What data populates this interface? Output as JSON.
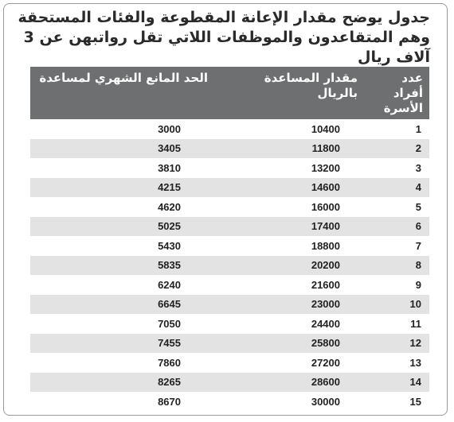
{
  "title": "جدول يوضح مقدار الإعانة المقطوعة والفئات المستحقة وهم المتقاعدون والموظفات اللاتي تقل رواتبهن عن 3 آلاف ريال",
  "table": {
    "headers": {
      "members": "عدد أفراد الأسرة",
      "amount": "مقدار المساعدة بالريال",
      "limit": "الحد المانع الشهري لمساعدة"
    },
    "rows": [
      {
        "members": "1",
        "amount": "10400",
        "limit": "3000"
      },
      {
        "members": "2",
        "amount": "11800",
        "limit": "3405"
      },
      {
        "members": "3",
        "amount": "13200",
        "limit": "3810"
      },
      {
        "members": "4",
        "amount": "14600",
        "limit": "4215"
      },
      {
        "members": "5",
        "amount": "16000",
        "limit": "4620"
      },
      {
        "members": "6",
        "amount": "17400",
        "limit": "5025"
      },
      {
        "members": "7",
        "amount": "18800",
        "limit": "5430"
      },
      {
        "members": "8",
        "amount": "20200",
        "limit": "5835"
      },
      {
        "members": "9",
        "amount": "21600",
        "limit": "6240"
      },
      {
        "members": "10",
        "amount": "23000",
        "limit": "6645"
      },
      {
        "members": "11",
        "amount": "24400",
        "limit": "7050"
      },
      {
        "members": "12",
        "amount": "25800",
        "limit": "7455"
      },
      {
        "members": "13",
        "amount": "27200",
        "limit": "7860"
      },
      {
        "members": "14",
        "amount": "28600",
        "limit": "8265"
      },
      {
        "members": "15",
        "amount": "30000",
        "limit": "8670"
      }
    ]
  },
  "colors": {
    "header_bg": "#6e6f71",
    "stripe_bg": "#e3e3e4",
    "frame_border": "#9a9a9a"
  }
}
